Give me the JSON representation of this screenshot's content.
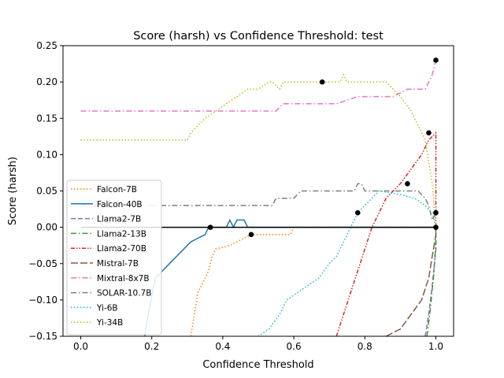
{
  "chart_data": {
    "type": "line",
    "title": "Score (harsh) vs Confidence Threshold: test",
    "xlabel": "Confidence Threshold",
    "ylabel": "Score (harsh)",
    "xlim": [
      -0.05,
      1.05
    ],
    "ylim": [
      -0.15,
      0.25
    ],
    "x_ticks": [
      "0.0",
      "0.2",
      "0.4",
      "0.6",
      "0.8",
      "1.0"
    ],
    "y_ticks": [
      "−0.15",
      "−0.10",
      "−0.05",
      "0.00",
      "0.05",
      "0.10",
      "0.15",
      "0.20",
      "0.25"
    ],
    "legend_position": "lower-left",
    "grid": false,
    "series": [
      {
        "name": "Falcon-7B",
        "color": "#ff7f0e",
        "dash": "dotted",
        "points": [
          [
            0.31,
            -0.15
          ],
          [
            0.33,
            -0.09
          ],
          [
            0.36,
            -0.06
          ],
          [
            0.37,
            -0.04
          ],
          [
            0.38,
            -0.03
          ],
          [
            0.42,
            -0.025
          ],
          [
            0.44,
            -0.02
          ],
          [
            0.46,
            -0.015
          ],
          [
            0.48,
            -0.01
          ],
          [
            0.55,
            -0.01
          ],
          [
            0.59,
            -0.01
          ],
          [
            0.6,
            0.0
          ],
          [
            0.9,
            0.0
          ],
          [
            1.0,
            0.0
          ]
        ],
        "marker": [
          0.48,
          -0.01
        ]
      },
      {
        "name": "Falcon-40B",
        "color": "#1f77b4",
        "dash": "solid",
        "points": [
          [
            0.18,
            -0.15
          ],
          [
            0.19,
            -0.12
          ],
          [
            0.21,
            -0.07
          ],
          [
            0.23,
            -0.06
          ],
          [
            0.25,
            -0.05
          ],
          [
            0.27,
            -0.04
          ],
          [
            0.29,
            -0.03
          ],
          [
            0.31,
            -0.02
          ],
          [
            0.33,
            -0.015
          ],
          [
            0.35,
            -0.01
          ],
          [
            0.36,
            0.0
          ],
          [
            0.41,
            0.0
          ],
          [
            0.42,
            0.01
          ],
          [
            0.43,
            0.0
          ],
          [
            0.44,
            0.01
          ],
          [
            0.46,
            0.01
          ],
          [
            0.47,
            0.0
          ],
          [
            1.0,
            0.0
          ]
        ],
        "marker": [
          0.365,
          0.0
        ]
      },
      {
        "name": "Llama2-7B",
        "color": "#9467bd",
        "dash": "dashed",
        "points": [
          [
            0.97,
            -0.15
          ],
          [
            0.98,
            -0.12
          ],
          [
            0.99,
            -0.08
          ],
          [
            1.0,
            -0.03
          ],
          [
            1.0,
            0.0
          ]
        ],
        "marker": null
      },
      {
        "name": "Llama2-13B",
        "color": "#2ca02c",
        "dash": "dashdot",
        "points": [
          [
            0.975,
            -0.15
          ],
          [
            0.985,
            -0.11
          ],
          [
            0.995,
            -0.06
          ],
          [
            1.0,
            -0.02
          ],
          [
            1.0,
            0.0
          ]
        ],
        "marker": null
      },
      {
        "name": "Llama2-70B",
        "color": "#d62728",
        "dash": "dashdotdot",
        "points": [
          [
            0.72,
            -0.15
          ],
          [
            0.74,
            -0.12
          ],
          [
            0.76,
            -0.09
          ],
          [
            0.78,
            -0.06
          ],
          [
            0.8,
            -0.03
          ],
          [
            0.82,
            0.0
          ],
          [
            0.84,
            0.02
          ],
          [
            0.86,
            0.04
          ],
          [
            0.9,
            0.06
          ],
          [
            0.93,
            0.08
          ],
          [
            0.96,
            0.1
          ],
          [
            0.98,
            0.12
          ],
          [
            1.0,
            0.13
          ],
          [
            1.0,
            0.0
          ]
        ],
        "marker": [
          0.92,
          0.06
        ]
      },
      {
        "name": "Mistral-7B",
        "color": "#8c564b",
        "dash": "longdash",
        "points": [
          [
            0.86,
            -0.15
          ],
          [
            0.9,
            -0.14
          ],
          [
            0.93,
            -0.12
          ],
          [
            0.96,
            -0.1
          ],
          [
            0.98,
            -0.07
          ],
          [
            0.99,
            -0.04
          ],
          [
            1.0,
            -0.01
          ],
          [
            1.0,
            0.0
          ]
        ],
        "marker": null
      },
      {
        "name": "Mixtral-8x7B",
        "color": "#e377c2",
        "dash": "dashdot",
        "points": [
          [
            0.0,
            0.16
          ],
          [
            0.36,
            0.16
          ],
          [
            0.55,
            0.16
          ],
          [
            0.57,
            0.17
          ],
          [
            0.72,
            0.17
          ],
          [
            0.78,
            0.18
          ],
          [
            0.88,
            0.18
          ],
          [
            0.92,
            0.19
          ],
          [
            0.97,
            0.19
          ],
          [
            0.99,
            0.21
          ],
          [
            1.0,
            0.23
          ]
        ],
        "marker": [
          1.0,
          0.23
        ]
      },
      {
        "name": "SOLAR-10.7B",
        "color": "#7f7f7f",
        "dash": "dashdot",
        "points": [
          [
            0.0,
            0.03
          ],
          [
            0.54,
            0.03
          ],
          [
            0.55,
            0.04
          ],
          [
            0.6,
            0.04
          ],
          [
            0.62,
            0.05
          ],
          [
            0.77,
            0.05
          ],
          [
            0.78,
            0.06
          ],
          [
            0.79,
            0.06
          ],
          [
            0.8,
            0.05
          ],
          [
            0.95,
            0.05
          ],
          [
            0.97,
            0.04
          ],
          [
            0.98,
            0.03
          ],
          [
            0.99,
            0.01
          ],
          [
            1.0,
            0.02
          ]
        ],
        "marker": [
          1.0,
          0.02
        ]
      },
      {
        "name": "Yi-6B",
        "color": "#17becf",
        "dash": "dotted",
        "points": [
          [
            0.5,
            -0.15
          ],
          [
            0.53,
            -0.14
          ],
          [
            0.56,
            -0.12
          ],
          [
            0.58,
            -0.1
          ],
          [
            0.61,
            -0.09
          ],
          [
            0.64,
            -0.08
          ],
          [
            0.67,
            -0.07
          ],
          [
            0.7,
            -0.05
          ],
          [
            0.72,
            -0.04
          ],
          [
            0.74,
            -0.02
          ],
          [
            0.76,
            0.0
          ],
          [
            0.78,
            0.02
          ],
          [
            0.8,
            0.03
          ],
          [
            0.82,
            0.04
          ],
          [
            0.84,
            0.05
          ],
          [
            0.9,
            0.045
          ],
          [
            0.94,
            0.04
          ],
          [
            0.97,
            0.03
          ],
          [
            0.99,
            0.02
          ],
          [
            1.0,
            0.0
          ]
        ],
        "marker": [
          0.78,
          0.02
        ]
      },
      {
        "name": "Yi-34B",
        "color": "#bcbd22",
        "dash": "dotted",
        "points": [
          [
            0.0,
            0.12
          ],
          [
            0.3,
            0.12
          ],
          [
            0.31,
            0.13
          ],
          [
            0.33,
            0.14
          ],
          [
            0.35,
            0.15
          ],
          [
            0.38,
            0.16
          ],
          [
            0.41,
            0.17
          ],
          [
            0.44,
            0.18
          ],
          [
            0.47,
            0.19
          ],
          [
            0.5,
            0.19
          ],
          [
            0.53,
            0.2
          ],
          [
            0.54,
            0.2
          ],
          [
            0.56,
            0.19
          ],
          [
            0.57,
            0.2
          ],
          [
            0.73,
            0.2
          ],
          [
            0.74,
            0.21
          ],
          [
            0.75,
            0.2
          ],
          [
            0.86,
            0.2
          ],
          [
            0.88,
            0.19
          ],
          [
            0.9,
            0.18
          ],
          [
            0.93,
            0.16
          ],
          [
            0.95,
            0.14
          ],
          [
            0.97,
            0.12
          ],
          [
            0.98,
            0.09
          ],
          [
            0.99,
            0.06
          ],
          [
            1.0,
            0.0
          ]
        ],
        "marker": [
          0.68,
          0.2
        ]
      }
    ],
    "extra_markers": [
      [
        0.98,
        0.13
      ],
      [
        1.0,
        0.0
      ]
    ]
  }
}
